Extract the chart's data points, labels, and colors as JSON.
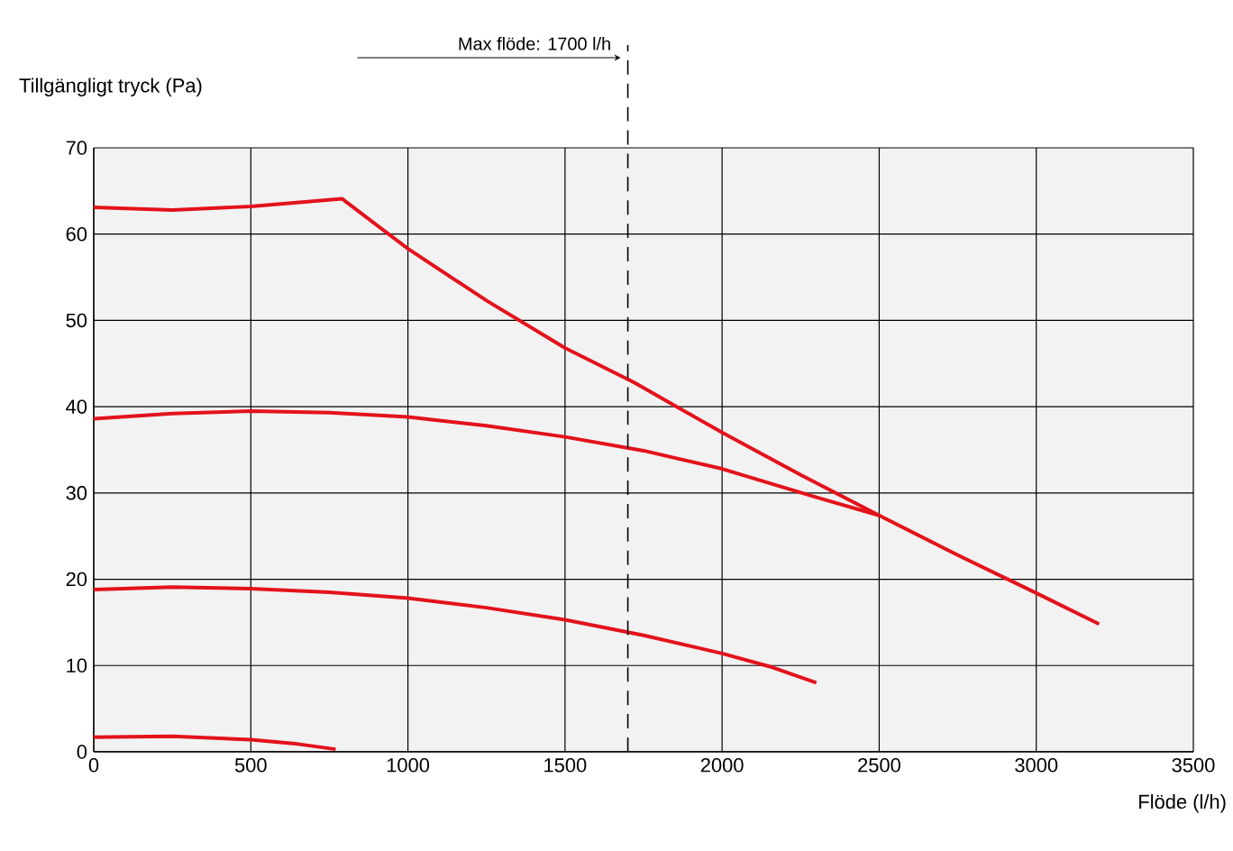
{
  "chart_data": {
    "type": "line",
    "xlabel": "Flöde (l/h)",
    "ylabel": "Tillgängligt tryck (Pa)",
    "xlim": [
      0,
      3500
    ],
    "xticks": [
      0,
      500,
      1000,
      1500,
      2000,
      2500,
      3000,
      3500
    ],
    "ylim": [
      0,
      70
    ],
    "yticks": [
      0,
      10,
      20,
      30,
      40,
      50,
      60,
      70
    ],
    "grid": true,
    "marker": "none",
    "line_style": "solid",
    "series": [
      {
        "color": "#e3121b",
        "x": [
          0,
          250,
          500,
          790,
          1000,
          1250,
          1500,
          1720,
          2000,
          2250,
          2500,
          2750,
          3000,
          3200
        ],
        "values": [
          63.1,
          62.8,
          63.2,
          64.1,
          58.3,
          52.3,
          46.8,
          42.8,
          37,
          32.1,
          27.4,
          22.8,
          18.4,
          14.8
        ]
      },
      {
        "color": "#e3121b",
        "x": [
          0,
          250,
          500,
          750,
          1000,
          1250,
          1500,
          1750,
          2000,
          2300,
          2500
        ],
        "values": [
          38.6,
          39.2,
          39.5,
          39.3,
          38.8,
          37.8,
          36.5,
          34.9,
          32.8,
          29.5,
          27.4
        ]
      },
      {
        "color": "#e3121b",
        "x": [
          0,
          250,
          500,
          750,
          1000,
          1250,
          1500,
          1750,
          2000,
          2150,
          2300
        ],
        "values": [
          18.8,
          19.1,
          18.9,
          18.5,
          17.8,
          16.7,
          15.3,
          13.5,
          11.4,
          9.9,
          8
        ]
      },
      {
        "color": "#e3121b",
        "x": [
          0,
          250,
          500,
          650,
          770
        ],
        "values": [
          1.7,
          1.8,
          1.4,
          0.9,
          0.3
        ]
      }
    ],
    "ref_lines": [
      {
        "axis": "x",
        "value": 1700,
        "label": "Max flöde: 1700 l/h",
        "line_style": "dashed",
        "color": "#000000"
      }
    ]
  }
}
